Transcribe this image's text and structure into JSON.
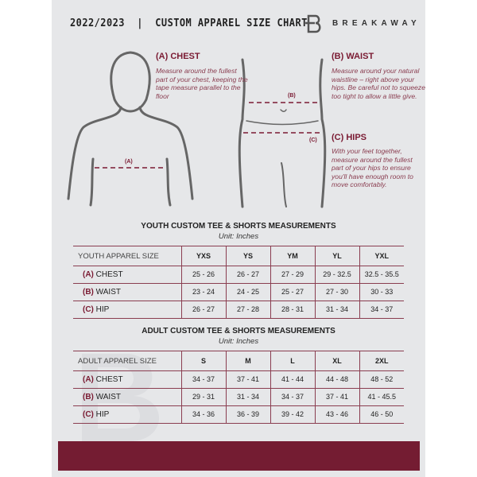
{
  "header": {
    "title": "2022/2023  |  CUSTOM APPAREL SIZE CHART",
    "brand": "BREAKAWAY",
    "watermark": "B"
  },
  "guide": {
    "chest": {
      "heading": "(A) CHEST",
      "text": "Measure around the fullest part of your chest, keeping the tape measure parallel to the floor",
      "marker": "(A)"
    },
    "waist": {
      "heading": "(B) WAIST",
      "text": "Measure around your natural waistline – right above your hips. Be careful not to squeeze too tight to allow a little give.",
      "marker": "(B)"
    },
    "hips": {
      "heading": "(C) HIPS",
      "text": "With your feet together, measure around the fullest part of your hips to ensure you'll have enough room to move comfortably.",
      "marker": "(C)"
    }
  },
  "youth": {
    "title": "YOUTH CUSTOM TEE & SHORTS MEASUREMENTS",
    "unit": "Unit: Inches",
    "header": [
      "YOUTH APPAREL SIZE",
      "YXS",
      "YS",
      "YM",
      "YL",
      "YXL"
    ],
    "rows": [
      {
        "tag": "(A)",
        "label": "CHEST",
        "values": [
          "25 - 26",
          "26 - 27",
          "27 - 29",
          "29 - 32.5",
          "32.5 - 35.5"
        ]
      },
      {
        "tag": "(B)",
        "label": "WAIST",
        "values": [
          "23 - 24",
          "24 - 25",
          "25 - 27",
          "27 - 30",
          "30 - 33"
        ]
      },
      {
        "tag": "(C)",
        "label": "HIP",
        "values": [
          "26 - 27",
          "27 - 28",
          "28 - 31",
          "31 - 34",
          "34 - 37"
        ]
      }
    ]
  },
  "adult": {
    "title": "ADULT CUSTOM TEE & SHORTS MEASUREMENTS",
    "unit": "Unit: Inches",
    "header": [
      "ADULT APPAREL SIZE",
      "S",
      "M",
      "L",
      "XL",
      "2XL"
    ],
    "rows": [
      {
        "tag": "(A)",
        "label": "CHEST",
        "values": [
          "34 - 37",
          "37 - 41",
          "41 - 44",
          "44 - 48",
          "48 - 52"
        ]
      },
      {
        "tag": "(B)",
        "label": "WAIST",
        "values": [
          "29 - 31",
          "31 - 34",
          "34 - 37",
          "37 - 41",
          "41 - 45.5"
        ]
      },
      {
        "tag": "(C)",
        "label": "HIP",
        "values": [
          "34 - 36",
          "36 - 39",
          "39 - 42",
          "43 - 46",
          "46 - 50"
        ]
      }
    ]
  },
  "colors": {
    "accent": "#741c32",
    "panel": "#e6e7e9"
  }
}
